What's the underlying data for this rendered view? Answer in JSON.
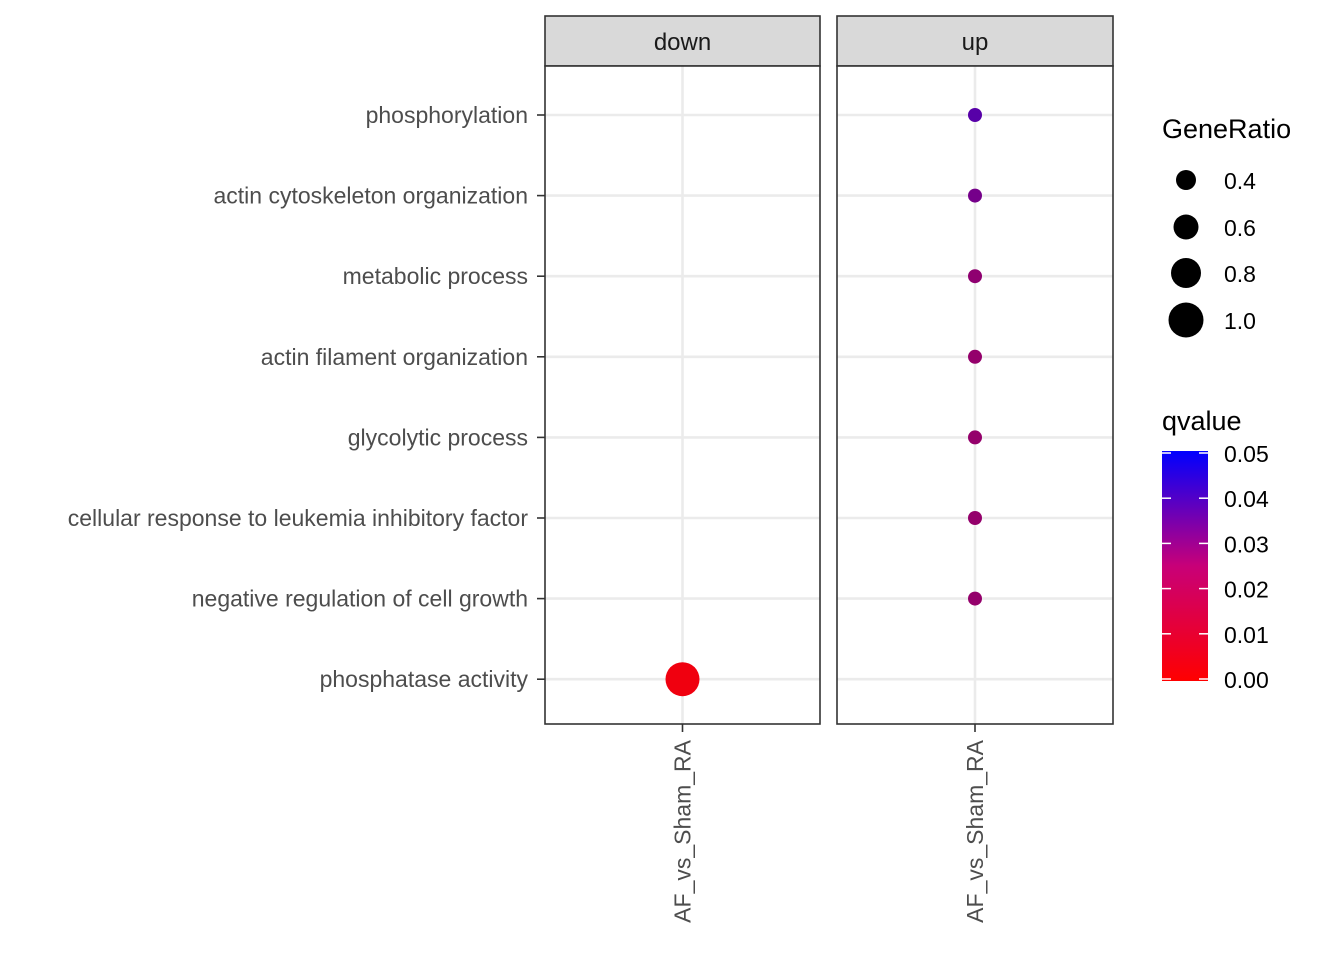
{
  "chart_data": {
    "type": "scatter",
    "facets": [
      "down",
      "up"
    ],
    "x_categories": [
      "AF_vs_Sham_RA"
    ],
    "y_categories": [
      "phosphorylation",
      "actin cytoskeleton organization",
      "metabolic process",
      "actin filament organization",
      "glycolytic process",
      "cellular response to leukemia inhibitory factor",
      "negative regulation of cell growth",
      "phosphatase activity"
    ],
    "points": [
      {
        "facet": "up",
        "x": "AF_vs_Sham_RA",
        "y": "phosphorylation",
        "GeneRatio": 0.33,
        "qvalue": 0.033
      },
      {
        "facet": "up",
        "x": "AF_vs_Sham_RA",
        "y": "actin cytoskeleton organization",
        "GeneRatio": 0.33,
        "qvalue": 0.027
      },
      {
        "facet": "up",
        "x": "AF_vs_Sham_RA",
        "y": "metabolic process",
        "GeneRatio": 0.33,
        "qvalue": 0.022
      },
      {
        "facet": "up",
        "x": "AF_vs_Sham_RA",
        "y": "actin filament organization",
        "GeneRatio": 0.33,
        "qvalue": 0.021
      },
      {
        "facet": "up",
        "x": "AF_vs_Sham_RA",
        "y": "glycolytic process",
        "GeneRatio": 0.33,
        "qvalue": 0.021
      },
      {
        "facet": "up",
        "x": "AF_vs_Sham_RA",
        "y": "cellular response to leukemia inhibitory factor",
        "GeneRatio": 0.33,
        "qvalue": 0.021
      },
      {
        "facet": "up",
        "x": "AF_vs_Sham_RA",
        "y": "negative regulation of cell growth",
        "GeneRatio": 0.33,
        "qvalue": 0.021
      },
      {
        "facet": "down",
        "x": "AF_vs_Sham_RA",
        "y": "phosphatase activity",
        "GeneRatio": 1.0,
        "qvalue": 0.003
      }
    ],
    "legend_size": {
      "title": "GeneRatio",
      "breaks": [
        0.4,
        0.6,
        0.8,
        1.0
      ],
      "labels": [
        "0.4",
        "0.6",
        "0.8",
        "1.0"
      ]
    },
    "legend_color": {
      "title": "qvalue",
      "low": 0.0,
      "high": 0.05,
      "low_color": "#ff0000",
      "high_color": "#0000ff",
      "breaks": [
        "0.05",
        "0.04",
        "0.03",
        "0.02",
        "0.01",
        "0.00"
      ]
    },
    "grid": true,
    "legend_position": "right"
  }
}
